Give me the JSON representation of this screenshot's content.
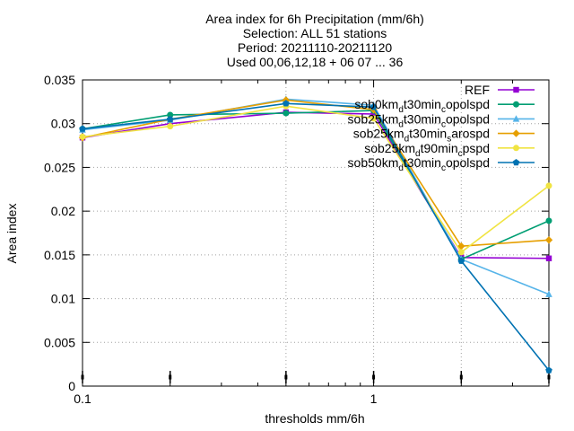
{
  "chart_data": {
    "type": "line",
    "title_lines": [
      "Area index  for 6h Precipitation (mm/6h)",
      "Selection: ALL      51 stations",
      "Period: 20211110-20211120",
      "Used 00,06,12,18 + 06 07 ... 36"
    ],
    "xlabel": "thresholds mm/6h",
    "ylabel": "Area index",
    "xscale": "log",
    "xlim": [
      0.1,
      4.0
    ],
    "ylim": [
      0,
      0.035
    ],
    "grid": true,
    "x_ticks": [
      {
        "value": 0.1,
        "label": "0.1"
      },
      {
        "value": 1,
        "label": "1"
      }
    ],
    "x_minor_ticks": [
      0.2,
      0.3,
      0.4,
      0.5,
      0.6,
      0.7,
      0.8,
      0.9,
      2,
      3,
      4
    ],
    "x_vgrid": [
      0.5,
      1,
      2
    ],
    "y_ticks": [
      {
        "value": 0,
        "label": "0"
      },
      {
        "value": 0.005,
        "label": "0.005"
      },
      {
        "value": 0.01,
        "label": "0.01"
      },
      {
        "value": 0.015,
        "label": "0.015"
      },
      {
        "value": 0.02,
        "label": "0.02"
      },
      {
        "value": 0.025,
        "label": "0.025"
      },
      {
        "value": 0.03,
        "label": "0.03"
      },
      {
        "value": 0.035,
        "label": "0.035"
      }
    ],
    "bottom_markers": [
      0.1,
      0.2,
      0.5,
      1,
      2,
      4
    ],
    "legend_position": "top-right",
    "x": [
      0.1,
      0.2,
      0.5,
      1,
      2,
      4
    ],
    "series": [
      {
        "name": "REF",
        "main": "REF",
        "sub": "",
        "tail": "",
        "color": "#9400d3",
        "marker": "square",
        "values": [
          0.0284,
          0.03,
          0.0313,
          0.0311,
          0.0147,
          0.0146
        ]
      },
      {
        "name": "sob0km_d t30min_c opolspd",
        "main": "sob0km",
        "sub": "d",
        "tail": "t30min",
        "sub2": "c",
        "tail2": "opolspd",
        "color": "#009e73",
        "marker": "circle",
        "values": [
          0.0294,
          0.031,
          0.0312,
          0.0315,
          0.0145,
          0.0189
        ]
      },
      {
        "name": "sob25km_d t30min_c opolspd",
        "main": "sob25km",
        "sub": "d",
        "tail": "t30min",
        "sub2": "c",
        "tail2": "opolspd",
        "color": "#56b4e9",
        "marker": "triangle",
        "values": [
          0.0293,
          0.0304,
          0.0328,
          0.0321,
          0.0145,
          0.0105
        ]
      },
      {
        "name": "sob25km_d t30min_s arospd",
        "main": "sob25km",
        "sub": "d",
        "tail": "t30min",
        "sub2": "s",
        "tail2": "arospd",
        "color": "#e69f00",
        "marker": "diamond",
        "values": [
          0.0284,
          0.0305,
          0.0327,
          0.0316,
          0.016,
          0.0167
        ]
      },
      {
        "name": "sob25km_d t90min_c pspd",
        "main": "sob25km",
        "sub": "d",
        "tail": "t90min",
        "sub2": "c",
        "tail2": "pspd",
        "color": "#f0e442",
        "marker": "circle",
        "values": [
          0.0285,
          0.0297,
          0.032,
          0.0306,
          0.0153,
          0.0229
        ]
      },
      {
        "name": "sob50km_d t30min_c opolspd",
        "main": "sob50km",
        "sub": "d",
        "tail": "t30min",
        "sub2": "c",
        "tail2": "opolspd",
        "color": "#0072b2",
        "marker": "pentagon",
        "values": [
          0.0294,
          0.0305,
          0.0323,
          0.0319,
          0.0143,
          0.0018
        ]
      }
    ]
  }
}
